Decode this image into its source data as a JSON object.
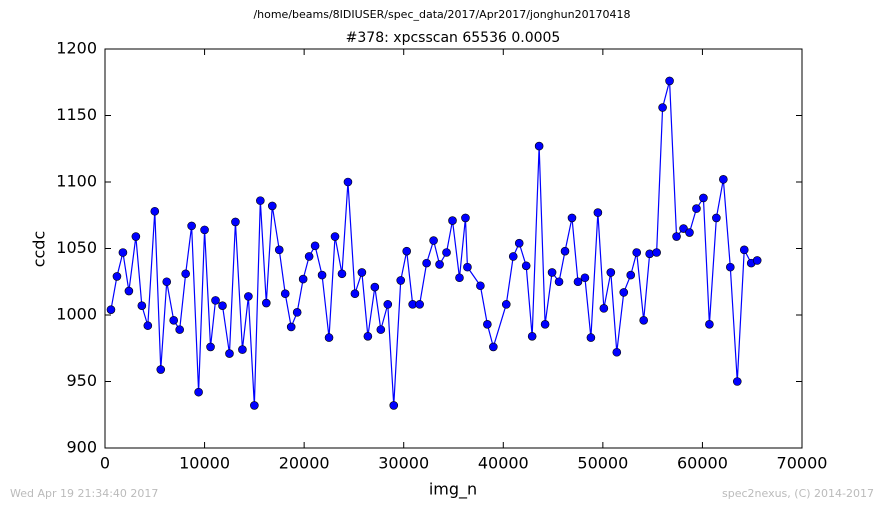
{
  "chart_data": {
    "type": "line",
    "suptitle": "/home/beams/8IDIUSER/spec_data/2017/Apr2017/jonghun20170418",
    "title": "#378: xpcsscan 65536 0.0005",
    "x_label": "img_n",
    "y_label": "ccdc",
    "footer_left": "Wed Apr 19 21:34:40 2017",
    "footer_right": "spec2nexus, (C) 2014-2017",
    "x": [
      600,
      1200,
      1800,
      2400,
      3100,
      3700,
      4300,
      5000,
      5600,
      6200,
      6900,
      7500,
      8100,
      8700,
      9400,
      10000,
      10600,
      11100,
      11800,
      12500,
      13100,
      13800,
      14400,
      15000,
      15600,
      16200,
      16800,
      17500,
      18100,
      18700,
      19300,
      19900,
      20500,
      21100,
      21800,
      22500,
      23100,
      23800,
      24400,
      25100,
      25800,
      26400,
      27100,
      27700,
      28400,
      29000,
      29700,
      30300,
      30900,
      31600,
      32300,
      33000,
      33600,
      34300,
      34900,
      35600,
      36200,
      36400,
      37700,
      38400,
      39000,
      40300,
      41000,
      41600,
      42300,
      42900,
      43600,
      44200,
      44900,
      45600,
      46200,
      46900,
      47500,
      48200,
      48800,
      49500,
      50100,
      50800,
      51400,
      52100,
      52800,
      53400,
      54100,
      54700,
      55400,
      56000,
      56700,
      57400,
      58100,
      58700,
      59400,
      60100,
      60700,
      61400,
      62100,
      62800,
      63500,
      64200,
      64900,
      65500
    ],
    "series": [
      {
        "color": "#0000ff",
        "values": [
          1004,
          1029,
          1047,
          1018,
          1059,
          1007,
          992,
          1078,
          959,
          1025,
          996,
          989,
          1031,
          1067,
          942,
          1064,
          976,
          1011,
          1007,
          971,
          1070,
          974,
          1014,
          932,
          1086,
          1009,
          1082,
          1049,
          1016,
          991,
          1002,
          1027,
          1044,
          1052,
          1030,
          983,
          1059,
          1031,
          1100,
          1016,
          1032,
          984,
          1021,
          989,
          1008,
          932,
          1026,
          1048,
          1008,
          1008,
          1039,
          1056,
          1038,
          1047,
          1071,
          1028,
          1073,
          1036,
          1022,
          993,
          976,
          1008,
          1044,
          1054,
          1037,
          984,
          1127,
          993,
          1032,
          1025,
          1048,
          1073,
          1025,
          1028,
          983,
          1077,
          1005,
          1032,
          972,
          1017,
          1030,
          1047,
          996,
          1046,
          1047,
          1156,
          1176,
          1059,
          1065,
          1062,
          1080,
          1088,
          993,
          1073,
          1102,
          1036,
          950,
          1049,
          1039,
          1041
        ]
      }
    ],
    "xlim": [
      0,
      70000
    ],
    "xticks": [
      0,
      10000,
      20000,
      30000,
      40000,
      50000,
      60000,
      70000
    ],
    "ylim": [
      900,
      1200
    ],
    "yticks": [
      900,
      950,
      1000,
      1050,
      1100,
      1150,
      1200
    ]
  }
}
